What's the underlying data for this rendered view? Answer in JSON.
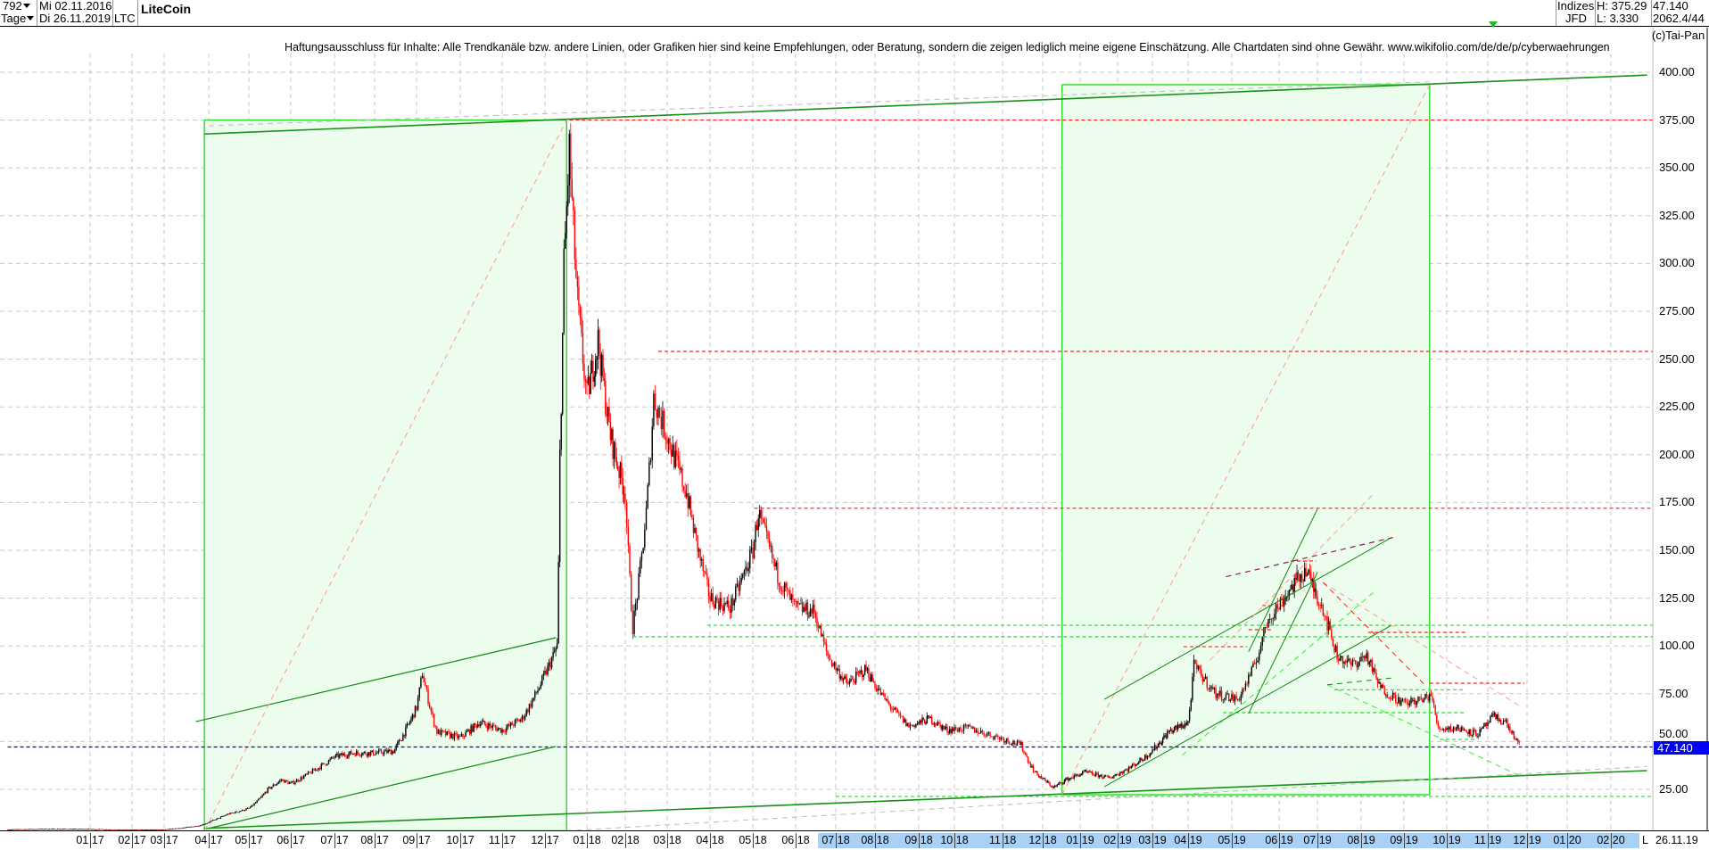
{
  "header": {
    "bars": "792",
    "period": "Tage",
    "start_date": "Mi 02.11.2016",
    "end_date": "Di 26.11.2019",
    "symbol": "LTC",
    "name": "LiteCoin",
    "category": "Indizes",
    "source": "JFD",
    "high": "H: 375.29",
    "low": "L: 3.330",
    "last": "47.140",
    "extra": "2062.4/44",
    "copyright": "(c)Tai-Pan"
  },
  "disclaimer": "Haftungsausschluss für Inhalte: Alle Trendkanäle bzw. andere Linien, oder Grafiken hier sind keine Empfehlungen, oder Beratung, sondern die zeigen lediglich meine eigene Einschätzung. Alle Chartdaten sind ohne Gewähr.  www.wikifolio.com/de/de/p/cyberwaehrungen",
  "xaxis": {
    "labels": [
      "01 17",
      "02 17",
      "03 17",
      "04 17",
      "05 17",
      "06 17",
      "07 17",
      "08 17",
      "09 17",
      "10 17",
      "11 17",
      "12 17",
      "01 18",
      "02 18",
      "03 18",
      "04 18",
      "05 18",
      "06 18",
      "07 18",
      "08 18",
      "09 18",
      "10 18",
      "11 18",
      "12 18",
      "01 19",
      "02 19",
      "03 19",
      "04 19",
      "05 19",
      "06 19",
      "07 19",
      "08 19",
      "09 19",
      "10 19",
      "11 19",
      "12 19",
      "01 20",
      "02 20"
    ],
    "highlight_from": "07 18",
    "mode": "L",
    "date": "26.11.19",
    "highlight_color": "#a9d0f5"
  },
  "chart_data": {
    "type": "line",
    "style": "candlestick",
    "ylim": [
      3.5,
      410
    ],
    "yticks": [
      "400.00",
      "375.00",
      "350.00",
      "325.00",
      "300.00",
      "275.00",
      "250.00",
      "225.00",
      "200.00",
      "175.00",
      "150.00",
      "125.00",
      "100.00",
      "75.00",
      "50.00",
      "25.00"
    ],
    "ytick_values": [
      400,
      375,
      350,
      325,
      300,
      275,
      250,
      225,
      200,
      175,
      150,
      125,
      100,
      75,
      50,
      25
    ],
    "grid": true,
    "colors": {
      "up": "#000000",
      "down": "#ff0000",
      "box_fill": "#edfded",
      "box_stroke": "#33dd33",
      "trend": "#118811"
    },
    "last_price": 47.14,
    "last_price_label": "47.140",
    "series": [
      {
        "values": [
          [
            "2016-11-02",
            4.0
          ],
          [
            "2016-12-01",
            4.3
          ],
          [
            "2017-01-01",
            4.2
          ],
          [
            "2017-02-01",
            3.8
          ],
          [
            "2017-03-01",
            3.9
          ],
          [
            "2017-03-25",
            6
          ],
          [
            "2017-04-05",
            9
          ],
          [
            "2017-04-15",
            12
          ],
          [
            "2017-05-01",
            15
          ],
          [
            "2017-05-15",
            25
          ],
          [
            "2017-05-25",
            30
          ],
          [
            "2017-06-01",
            28
          ],
          [
            "2017-06-15",
            34
          ],
          [
            "2017-07-01",
            42
          ],
          [
            "2017-07-15",
            44
          ],
          [
            "2017-08-01",
            44
          ],
          [
            "2017-08-15",
            45
          ],
          [
            "2017-09-01",
            68
          ],
          [
            "2017-09-05",
            86
          ],
          [
            "2017-09-15",
            55
          ],
          [
            "2017-10-01",
            52
          ],
          [
            "2017-10-15",
            60
          ],
          [
            "2017-11-01",
            56
          ],
          [
            "2017-11-15",
            62
          ],
          [
            "2017-12-01",
            85
          ],
          [
            "2017-12-10",
            100
          ],
          [
            "2017-12-12",
            200
          ],
          [
            "2017-12-15",
            300
          ],
          [
            "2017-12-19",
            360
          ],
          [
            "2017-12-25",
            280
          ],
          [
            "2018-01-01",
            230
          ],
          [
            "2018-01-10",
            260
          ],
          [
            "2018-01-20",
            210
          ],
          [
            "2018-02-01",
            180
          ],
          [
            "2018-02-06",
            110
          ],
          [
            "2018-02-15",
            170
          ],
          [
            "2018-02-20",
            230
          ],
          [
            "2018-03-01",
            210
          ],
          [
            "2018-03-15",
            180
          ],
          [
            "2018-04-01",
            125
          ],
          [
            "2018-04-15",
            120
          ],
          [
            "2018-05-01",
            150
          ],
          [
            "2018-05-05",
            170
          ],
          [
            "2018-05-20",
            135
          ],
          [
            "2018-06-01",
            120
          ],
          [
            "2018-06-15",
            118
          ],
          [
            "2018-06-25",
            95
          ],
          [
            "2018-07-10",
            80
          ],
          [
            "2018-07-25",
            88
          ],
          [
            "2018-08-10",
            70
          ],
          [
            "2018-08-25",
            58
          ],
          [
            "2018-09-10",
            62
          ],
          [
            "2018-09-25",
            56
          ],
          [
            "2018-10-10",
            57
          ],
          [
            "2018-10-30",
            52
          ],
          [
            "2018-11-15",
            48
          ],
          [
            "2018-11-25",
            34
          ],
          [
            "2018-12-10",
            26
          ],
          [
            "2018-12-20",
            30
          ],
          [
            "2019-01-05",
            34
          ],
          [
            "2019-01-25",
            31
          ],
          [
            "2019-02-10",
            36
          ],
          [
            "2019-02-25",
            43
          ],
          [
            "2019-03-15",
            55
          ],
          [
            "2019-04-01",
            60
          ],
          [
            "2019-04-05",
            90
          ],
          [
            "2019-04-20",
            75
          ],
          [
            "2019-05-05",
            72
          ],
          [
            "2019-05-15",
            88
          ],
          [
            "2019-05-25",
            115
          ],
          [
            "2019-06-10",
            130
          ],
          [
            "2019-06-22",
            140
          ],
          [
            "2019-07-05",
            120
          ],
          [
            "2019-07-15",
            95
          ],
          [
            "2019-07-25",
            90
          ],
          [
            "2019-08-05",
            95
          ],
          [
            "2019-08-15",
            78
          ],
          [
            "2019-09-01",
            70
          ],
          [
            "2019-09-15",
            72
          ],
          [
            "2019-09-20",
            75
          ],
          [
            "2019-09-25",
            57
          ],
          [
            "2019-10-10",
            57
          ],
          [
            "2019-10-25",
            54
          ],
          [
            "2019-11-05",
            63
          ],
          [
            "2019-11-15",
            60
          ],
          [
            "2019-11-26",
            47.14
          ]
        ]
      }
    ],
    "annotations": {
      "boxes": [
        {
          "from": [
            "2017-03-29",
            3.3
          ],
          "to": [
            "2017-12-17",
            375
          ]
        },
        {
          "from": [
            "2018-12-17",
            22.2
          ],
          "to": [
            "2019-09-19",
            393.5
          ]
        }
      ],
      "lines": [
        {
          "from": [
            "2017-03-29",
            367.7
          ],
          "to": [
            "2020-02-26",
            398.5
          ],
          "color": "#1a8f1a",
          "dash": false,
          "width": 1.6
        },
        {
          "from": [
            "2017-03-29",
            4.6
          ],
          "to": [
            "2020-02-26",
            34.8
          ],
          "color": "#1a8f1a",
          "dash": false,
          "width": 1.6
        },
        {
          "from": [
            "2017-03-23",
            60.4
          ],
          "to": [
            "2017-12-09",
            104.3
          ],
          "color": "#118811",
          "dash": false,
          "width": 1.2
        },
        {
          "from": [
            "2017-04-01",
            4.6
          ],
          "to": [
            "2017-12-09",
            47.4
          ],
          "color": "#118811",
          "dash": false,
          "width": 1.2
        },
        {
          "from": [
            "2017-03-29",
            3.3
          ],
          "to": [
            "2017-12-17",
            375
          ],
          "color": "#ff9999",
          "dash": true,
          "width": 1
        },
        {
          "from": [
            "2018-12-17",
            22.2
          ],
          "to": [
            "2019-09-19",
            393.5
          ],
          "color": "#ff9999",
          "dash": true,
          "width": 1
        },
        {
          "from": [
            "2017-04-01",
            372
          ],
          "to": [
            "2019-09-19",
            395
          ],
          "color": "#bbbbbb",
          "dash": true,
          "width": 1
        },
        {
          "from": [
            "2017-12-17",
            3.3
          ],
          "to": [
            "2020-02-26",
            37
          ],
          "color": "#bbbbbb",
          "dash": true,
          "width": 1
        },
        {
          "from": [
            "2019-01-21",
            72.1
          ],
          "to": [
            "2019-08-23",
            156.7
          ],
          "color": "#118811",
          "dash": false,
          "width": 1
        },
        {
          "from": [
            "2019-01-21",
            26.4
          ],
          "to": [
            "2019-08-23",
            110.8
          ],
          "color": "#118811",
          "dash": false,
          "width": 1
        },
        {
          "from": [
            "2019-05-12",
            97.0
          ],
          "to": [
            "2019-07-01",
            171.6
          ],
          "color": "#118811",
          "dash": false,
          "width": 1
        },
        {
          "from": [
            "2019-05-12",
            64.6
          ],
          "to": [
            "2019-07-01",
            138.5
          ],
          "color": "#118811",
          "dash": false,
          "width": 1
        },
        {
          "from": [
            "2019-04-27",
            136.2
          ],
          "to": [
            "2019-08-24",
            156.7
          ],
          "color": "#882255",
          "dash": true,
          "width": 1.2
        },
        {
          "from": [
            "2019-03-27",
            42.9
          ],
          "to": [
            "2019-08-12",
            129.2
          ],
          "color": "#33ee33",
          "dash": true,
          "width": 1
        },
        {
          "from": [
            "2019-07-08",
            79.7
          ],
          "to": [
            "2019-11-27",
            31.5
          ],
          "color": "#33ee33",
          "dash": true,
          "width": 1
        },
        {
          "from": [
            "2019-07-05",
            133.2
          ],
          "to": [
            "2019-11-27",
            67.9
          ],
          "color": "#ff9999",
          "dash": true,
          "width": 1
        },
        {
          "from": [
            "2019-04-16",
            92.6
          ],
          "to": [
            "2019-08-11",
            180.3
          ],
          "color": "#ff9999",
          "dash": true,
          "width": 1
        },
        {
          "from": [
            "2019-07-05",
            133.2
          ],
          "to": [
            "2019-09-17",
            78.6
          ],
          "color": "#ee2222",
          "dash": true,
          "width": 1
        },
        {
          "from": [
            "2019-07-08",
            79.7
          ],
          "to": [
            "2019-08-24",
            83.3
          ],
          "color": "#118811",
          "dash": true,
          "width": 1
        }
      ],
      "hlines": [
        {
          "price": 375,
          "from": "2017-12-19",
          "color": "#ff2222"
        },
        {
          "price": 254,
          "from": "2018-02-23",
          "color": "#ff2222"
        },
        {
          "price": 172,
          "from": "2018-05-02",
          "color": "#ff2222"
        },
        {
          "price": 104.8,
          "from": "2018-02-06",
          "color": "#22dd22"
        },
        {
          "price": 110.8,
          "from": "2018-03-30",
          "color": "#22dd22"
        },
        {
          "price": 21.3,
          "from": "2018-07-01",
          "color": "#22dd22"
        },
        {
          "price": 47.14,
          "from": "2016-11-02",
          "color": "#0000cc"
        },
        {
          "price": 99.6,
          "from": "2019-03-28",
          "to": "2019-05-11",
          "color": "#ff2222"
        },
        {
          "price": 121.1,
          "from": "2019-05-21",
          "to": "2019-06-07",
          "color": "#ff2222"
        },
        {
          "price": 108.5,
          "from": "2019-05-12",
          "to": "2019-05-27",
          "color": "#ff2222"
        },
        {
          "price": 144.4,
          "from": "2019-06-10",
          "to": "2019-06-30",
          "color": "#ff2222"
        },
        {
          "price": 107.1,
          "from": "2019-08-06",
          "to": "2019-10-15",
          "color": "#ff2222"
        },
        {
          "price": 80.5,
          "from": "2019-09-19",
          "to": "2019-11-29",
          "color": "#ff2222"
        },
        {
          "price": 77.1,
          "from": "2019-07-13",
          "to": "2019-10-15",
          "color": "#22dd22"
        },
        {
          "price": 65.1,
          "from": "2019-04-25",
          "to": "2019-10-15",
          "color": "#22dd22"
        },
        {
          "price": 51.1,
          "from": "2019-09-26",
          "to": "2019-10-22",
          "color": "#22dd22"
        }
      ]
    }
  }
}
